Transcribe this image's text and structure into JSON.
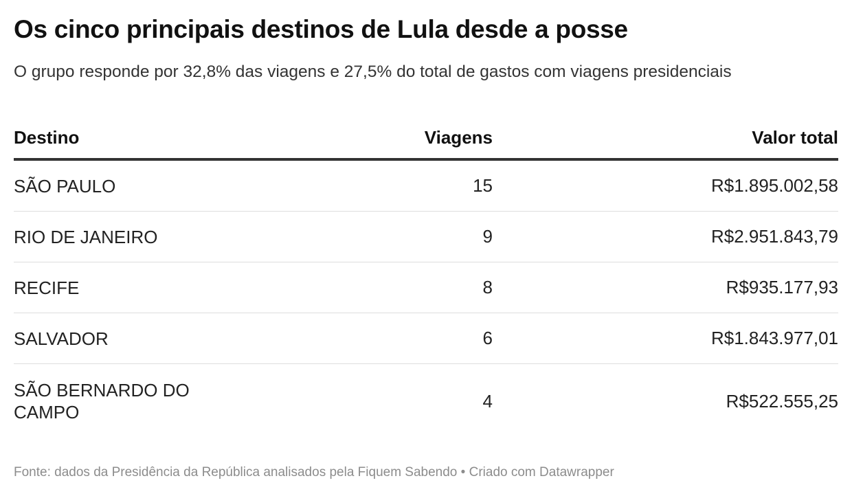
{
  "title": "Os cinco principais destinos de Lula desde a posse",
  "subtitle": "O grupo responde por 32,8% das viagens e 27,5% do total de gastos com viagens presidenciais",
  "chart_data": {
    "type": "table",
    "columns": [
      "Destino",
      "Viagens",
      "Valor total"
    ],
    "rows": [
      [
        "SÃO PAULO",
        "15",
        "R$1.895.002,58"
      ],
      [
        "RIO DE JANEIRO",
        "9",
        "R$2.951.843,79"
      ],
      [
        "RECIFE",
        "8",
        "R$935.177,93"
      ],
      [
        "SALVADOR",
        "6",
        "R$1.843.977,01"
      ],
      [
        "SÃO BERNARDO DO CAMPO",
        "4",
        "R$522.555,25"
      ]
    ]
  },
  "footer": {
    "source": "Fonte: dados da Presidência da República analisados pela Fiquem Sabendo",
    "separator": " • ",
    "credit": "Criado com Datawrapper"
  }
}
